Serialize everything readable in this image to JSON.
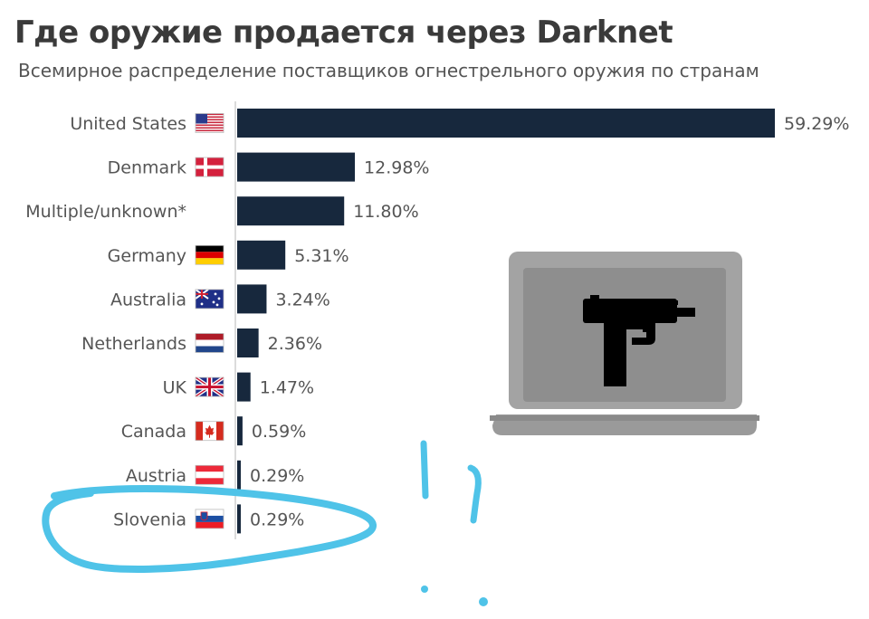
{
  "header": {
    "title": "Где оружие продается через Darknet",
    "subtitle": "Всемирное распределение поставщиков огнестрельного оружия по странам"
  },
  "chart_data": {
    "type": "bar",
    "orientation": "horizontal",
    "title": "Где оружие продается через Darknet",
    "subtitle": "Всемирное распределение поставщиков огнестрельного оружия по странам",
    "xlabel": "",
    "ylabel": "",
    "xlim": [
      0,
      59.29
    ],
    "grid": false,
    "legend": "none",
    "categories": [
      "United States",
      "Denmark",
      "Multiple/unknown*",
      "Germany",
      "Australia",
      "Netherlands",
      "UK",
      "Canada",
      "Austria",
      "Slovenia"
    ],
    "values": [
      59.29,
      12.98,
      11.8,
      5.31,
      3.24,
      2.36,
      1.47,
      0.59,
      0.29,
      0.29
    ],
    "value_labels": [
      "59.29%",
      "12.98%",
      "11.80%",
      "5.31%",
      "3.24%",
      "2.36%",
      "1.47%",
      "0.59%",
      "0.29%",
      "0.29%"
    ],
    "flags": [
      "us-flag-icon",
      "denmark-flag-icon",
      "",
      "germany-flag-icon",
      "australia-flag-icon",
      "netherlands-flag-icon",
      "uk-flag-icon",
      "canada-flag-icon",
      "austria-flag-icon",
      "slovenia-flag-icon"
    ],
    "bar_color": "#17283d",
    "label_color": "#555555"
  },
  "illustration": {
    "icon": "laptop-with-submachine-gun-icon",
    "laptop_color": "#9a9a9a",
    "screen_color": "#8c8c8c",
    "gun_color": "#000000"
  },
  "annotations": {
    "highlight_color": "#4fc3e8",
    "items": [
      "slovenia-circle-scribble",
      "double-exclamation-scribble"
    ]
  }
}
